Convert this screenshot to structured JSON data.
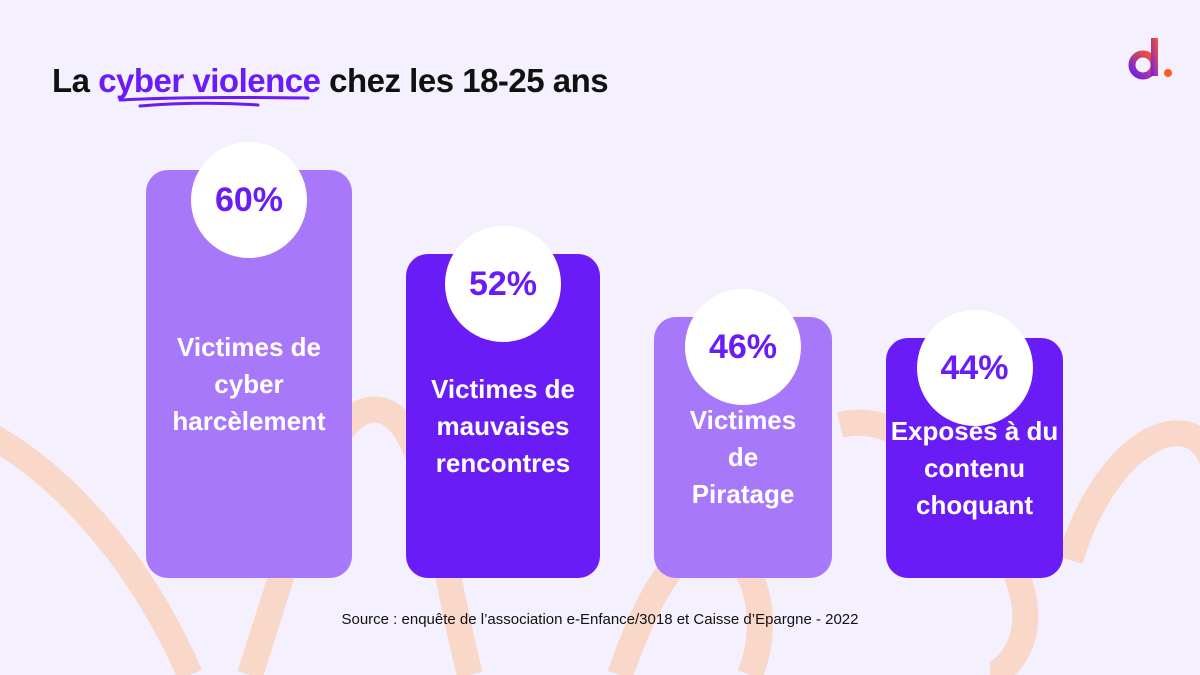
{
  "title": {
    "prefix": "La ",
    "highlight": "cyber violence",
    "suffix": " chez les 18-25 ans"
  },
  "logo": {
    "text": "d."
  },
  "colors": {
    "background": "#f5f0fd",
    "light_bar": "#a878fb",
    "dark_bar": "#6a1cf6",
    "accent": "#6a1cf6",
    "curves": "#f9d8ca"
  },
  "chart_data": {
    "type": "bar",
    "categories": [
      "Victimes de\ncyber\nharcèlement",
      "Victimes de\nmauvaises\nrencontres",
      "Victimes\nde\nPiratage",
      "Exposés à du\ncontenu\nchoquant"
    ],
    "values": [
      60,
      52,
      46,
      44
    ],
    "data_labels": [
      "60%",
      "52%",
      "46%",
      "44%"
    ],
    "bar_colors": [
      "#a878fb",
      "#6a1cf6",
      "#a878fb",
      "#6a1cf6"
    ],
    "title": "La cyber violence chez les 18-25 ans"
  },
  "source": "Source : enquête de l’association e-Enfance/3018 et Caisse d’Epargne - 2022"
}
